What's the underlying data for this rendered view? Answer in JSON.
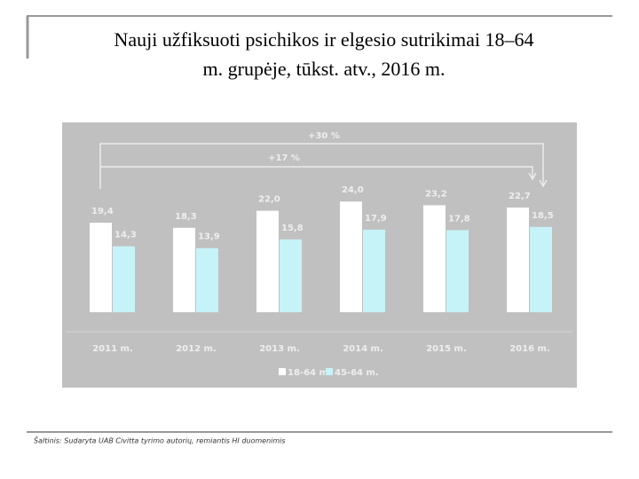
{
  "chart_data": {
    "type": "bar",
    "title": "Nauji užfiksuoti psichikos ir elgesio sutrikimai 18–64 m. grupėje, tūkst. atv., 2016 m.",
    "categories": [
      "2011 m.",
      "2012 m.",
      "2013 m.",
      "2014 m.",
      "2015 m.",
      "2016 m."
    ],
    "series": [
      {
        "name": "18-64 m.",
        "color": "#ffffff",
        "values": [
          19.4,
          18.3,
          22.0,
          24.0,
          23.2,
          22.7
        ],
        "value_labels": [
          "19,4",
          "18,3",
          "22,0",
          "24,0",
          "23,2",
          "22,7"
        ]
      },
      {
        "name": "45-64 m.",
        "color": "#c6f3f8",
        "values": [
          14.3,
          13.9,
          15.8,
          17.9,
          17.8,
          18.5
        ],
        "value_labels": [
          "14,3",
          "13,9",
          "15,8",
          "17,9",
          "17,8",
          "18,5"
        ]
      }
    ],
    "annotations": [
      "+30 %",
      "+17 %"
    ],
    "ylim": [
      0,
      40
    ]
  },
  "source": "Šaltinis: Sudaryta UAB Civitta tyrimo autorių, remiantis HI duomenimis"
}
